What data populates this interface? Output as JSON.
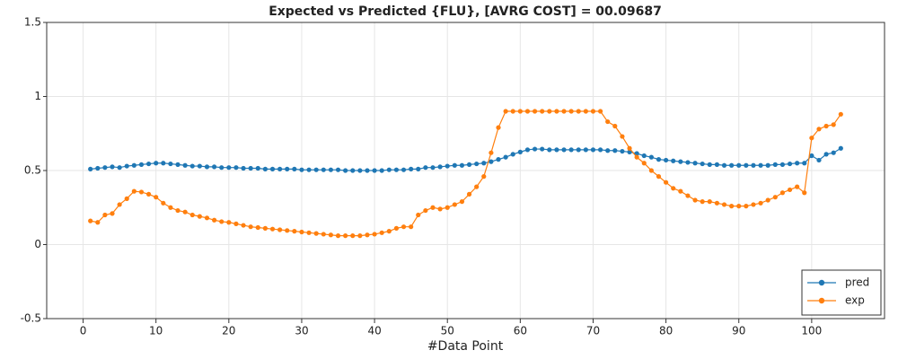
{
  "chart_data": {
    "type": "line",
    "title": "Expected vs Predicted {FLU}, [AVRG COST] = 00.09687",
    "x_label": "#Data Point",
    "x": [
      1,
      2,
      3,
      4,
      5,
      6,
      7,
      8,
      9,
      10,
      11,
      12,
      13,
      14,
      15,
      16,
      17,
      18,
      19,
      20,
      21,
      22,
      23,
      24,
      25,
      26,
      27,
      28,
      29,
      30,
      31,
      32,
      33,
      34,
      35,
      36,
      37,
      38,
      39,
      40,
      41,
      42,
      43,
      44,
      45,
      46,
      47,
      48,
      49,
      50,
      51,
      52,
      53,
      54,
      55,
      56,
      57,
      58,
      59,
      60,
      61,
      62,
      63,
      64,
      65,
      66,
      67,
      68,
      69,
      70,
      71,
      72,
      73,
      74,
      75,
      76,
      77,
      78,
      79,
      80,
      81,
      82,
      83,
      84,
      85,
      86,
      87,
      88,
      89,
      90,
      91,
      92,
      93,
      94,
      95,
      96,
      97,
      98,
      99,
      100,
      101,
      102,
      103,
      104
    ],
    "series": [
      {
        "name": "pred",
        "color": "#1f77b4",
        "values": [
          0.51,
          0.515,
          0.52,
          0.525,
          0.52,
          0.53,
          0.535,
          0.54,
          0.545,
          0.55,
          0.55,
          0.545,
          0.54,
          0.535,
          0.53,
          0.53,
          0.525,
          0.525,
          0.52,
          0.52,
          0.52,
          0.515,
          0.515,
          0.515,
          0.51,
          0.51,
          0.51,
          0.51,
          0.51,
          0.505,
          0.505,
          0.505,
          0.505,
          0.505,
          0.505,
          0.5,
          0.5,
          0.5,
          0.5,
          0.5,
          0.5,
          0.505,
          0.505,
          0.505,
          0.51,
          0.51,
          0.52,
          0.52,
          0.525,
          0.53,
          0.535,
          0.535,
          0.54,
          0.545,
          0.55,
          0.56,
          0.575,
          0.59,
          0.61,
          0.625,
          0.64,
          0.645,
          0.645,
          0.64,
          0.64,
          0.64,
          0.64,
          0.64,
          0.64,
          0.64,
          0.64,
          0.635,
          0.635,
          0.63,
          0.625,
          0.615,
          0.6,
          0.59,
          0.575,
          0.57,
          0.565,
          0.56,
          0.555,
          0.55,
          0.545,
          0.54,
          0.54,
          0.535,
          0.535,
          0.535,
          0.535,
          0.535,
          0.535,
          0.535,
          0.54,
          0.54,
          0.545,
          0.55,
          0.55,
          0.6,
          0.57,
          0.61,
          0.62,
          0.65
        ]
      },
      {
        "name": "exp",
        "color": "#ff7f0e",
        "values": [
          0.16,
          0.15,
          0.2,
          0.21,
          0.27,
          0.31,
          0.36,
          0.355,
          0.34,
          0.32,
          0.28,
          0.25,
          0.23,
          0.22,
          0.2,
          0.19,
          0.18,
          0.165,
          0.155,
          0.15,
          0.14,
          0.13,
          0.12,
          0.115,
          0.11,
          0.105,
          0.1,
          0.095,
          0.09,
          0.085,
          0.08,
          0.075,
          0.07,
          0.065,
          0.06,
          0.06,
          0.06,
          0.06,
          0.065,
          0.07,
          0.08,
          0.09,
          0.11,
          0.12,
          0.12,
          0.2,
          0.23,
          0.25,
          0.24,
          0.25,
          0.27,
          0.29,
          0.34,
          0.39,
          0.46,
          0.62,
          0.79,
          0.9,
          0.9,
          0.9,
          0.9,
          0.9,
          0.9,
          0.9,
          0.9,
          0.9,
          0.9,
          0.9,
          0.9,
          0.9,
          0.9,
          0.83,
          0.8,
          0.73,
          0.65,
          0.59,
          0.55,
          0.5,
          0.46,
          0.42,
          0.38,
          0.36,
          0.33,
          0.3,
          0.29,
          0.29,
          0.28,
          0.27,
          0.26,
          0.26,
          0.26,
          0.27,
          0.28,
          0.3,
          0.32,
          0.35,
          0.37,
          0.39,
          0.35,
          0.72,
          0.78,
          0.8,
          0.81,
          0.88
        ]
      }
    ],
    "xlim": [
      -5,
      110
    ],
    "ylim": [
      -0.5,
      1.5
    ],
    "xticks": [
      0,
      10,
      20,
      30,
      40,
      50,
      60,
      70,
      80,
      90,
      100
    ],
    "yticks": [
      1.5,
      1,
      0.5,
      0,
      -0.5
    ],
    "grid": true,
    "legend": "lower right"
  }
}
